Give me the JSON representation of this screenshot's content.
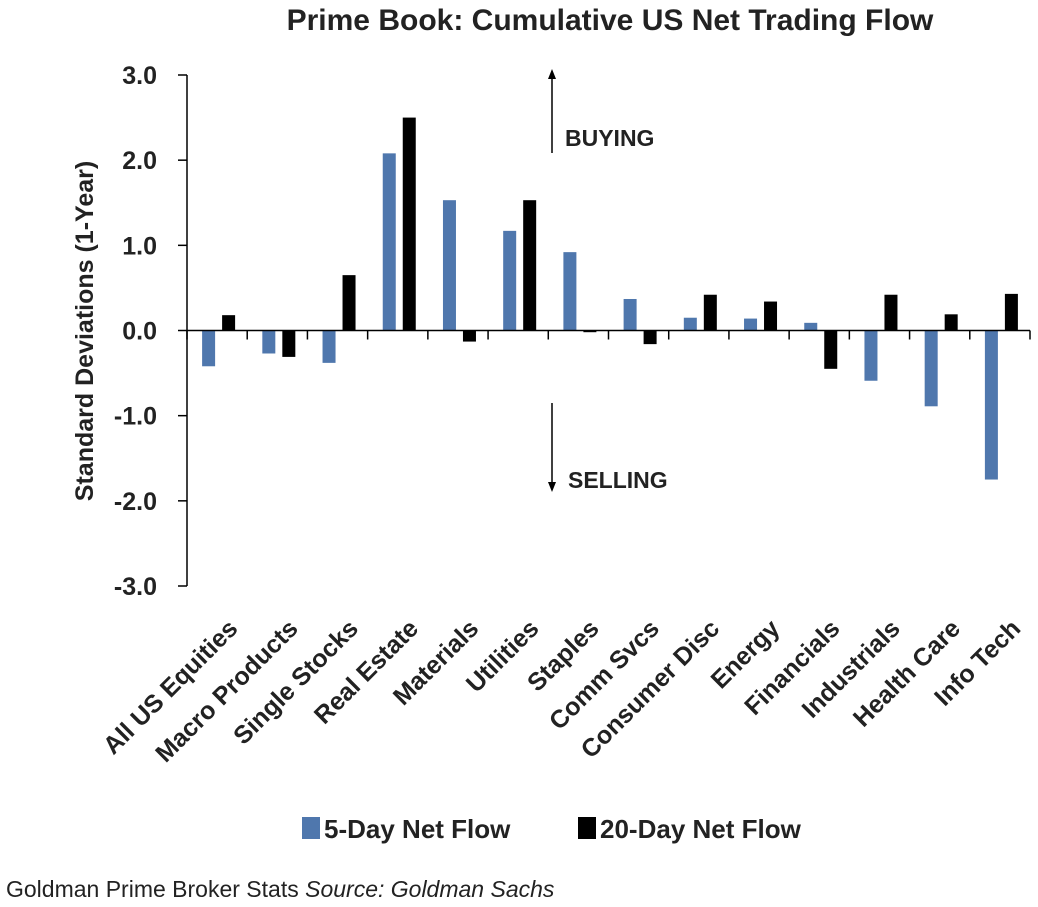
{
  "chart_data": {
    "type": "bar",
    "title": "Prime Book: Cumulative US Net Trading Flow",
    "ylabel": "Standard Deviations (1-Year)",
    "xlabel": "",
    "ylim": [
      -3.0,
      3.0
    ],
    "yticks": [
      3.0,
      2.0,
      1.0,
      0.0,
      -1.0,
      -2.0,
      -3.0
    ],
    "ytick_labels": [
      "3.0",
      "2.0",
      "1.0",
      "0.0",
      "-1.0",
      "-2.0",
      "-3.0"
    ],
    "grid": false,
    "legend_position": "bottom-center",
    "categories": [
      "All US Equities",
      "Macro Products",
      "Single Stocks",
      "Real Estate",
      "Materials",
      "Utilities",
      "Staples",
      "Comm Svcs",
      "Consumer Disc",
      "Energy",
      "Financials",
      "Industrials",
      "Health Care",
      "Info Tech"
    ],
    "series": [
      {
        "name": "5-Day Net Flow",
        "color": "#4f77ad",
        "values": [
          -0.42,
          -0.27,
          -0.38,
          2.08,
          1.53,
          1.17,
          0.92,
          0.37,
          0.15,
          0.14,
          0.09,
          -0.59,
          -0.89,
          -1.75
        ]
      },
      {
        "name": "20-Day Net Flow",
        "color": "#000000",
        "values": [
          0.18,
          -0.31,
          0.65,
          2.5,
          -0.13,
          1.53,
          -0.02,
          -0.16,
          0.42,
          0.34,
          -0.45,
          0.42,
          0.19,
          0.43
        ]
      }
    ],
    "annotations": [
      {
        "text": "BUYING",
        "direction": "up"
      },
      {
        "text": "SELLING",
        "direction": "down"
      }
    ]
  },
  "footer": {
    "caption": "Goldman Prime Broker Stats",
    "source": "Source: Goldman Sachs"
  }
}
